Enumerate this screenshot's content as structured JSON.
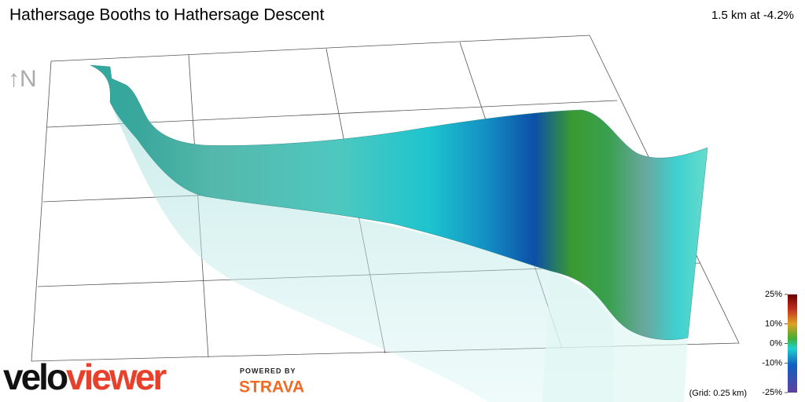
{
  "header": {
    "title": "Hathersage Booths to Hathersage Descent",
    "summary": "1.5 km at -4.2%"
  },
  "compass": "↑N",
  "gradient_scale": {
    "ticks": [
      {
        "value": 25,
        "label": "25%"
      },
      {
        "value": 10,
        "label": "10%"
      },
      {
        "value": 0,
        "label": "0%"
      },
      {
        "value": -10,
        "label": "-10%"
      },
      {
        "value": -25,
        "label": "-25%"
      }
    ]
  },
  "grid_note": "(Grid: 0.25 km)",
  "branding": {
    "logo_prefix": "velo",
    "logo_suffix": "viewer",
    "powered_by": "POWERED BY",
    "partner": "STRAVA"
  }
}
